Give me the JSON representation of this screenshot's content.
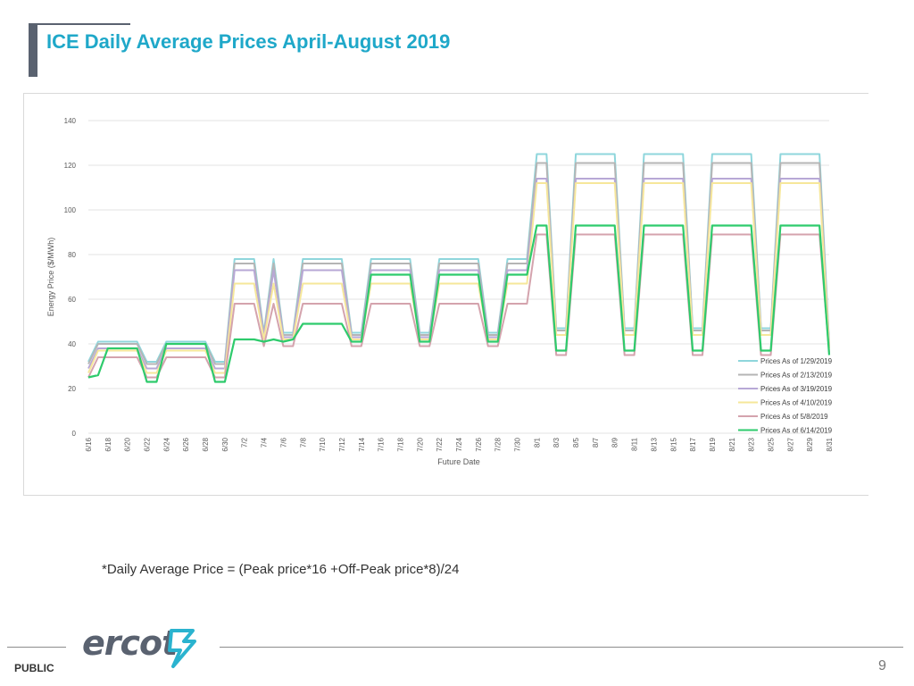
{
  "slide": {
    "title": "ICE Daily Average Prices April-August 2019",
    "footnote": "*Daily Average Price = (Peak price*16 +Off-Peak price*8)/24",
    "classification": "PUBLIC",
    "page_number": "9",
    "logo_text": "ercot",
    "logo_icon": "ercot-bolt-icon"
  },
  "chart_data": {
    "type": "line",
    "title": "",
    "xlabel": "Future Date",
    "ylabel": "Energy Price ($/MWh)",
    "ylim": [
      0,
      140
    ],
    "yticks": [
      0,
      20,
      40,
      60,
      80,
      100,
      120,
      140
    ],
    "grid": true,
    "legend_position": "bottom-right",
    "x": [
      "6/16",
      "6/17",
      "6/18",
      "6/19",
      "6/20",
      "6/21",
      "6/22",
      "6/23",
      "6/24",
      "6/25",
      "6/26",
      "6/27",
      "6/28",
      "6/29",
      "6/30",
      "7/1",
      "7/2",
      "7/3",
      "7/4",
      "7/5",
      "7/6",
      "7/7",
      "7/8",
      "7/9",
      "7/10",
      "7/11",
      "7/12",
      "7/13",
      "7/14",
      "7/15",
      "7/16",
      "7/17",
      "7/18",
      "7/19",
      "7/20",
      "7/21",
      "7/22",
      "7/23",
      "7/24",
      "7/25",
      "7/26",
      "7/27",
      "7/28",
      "7/29",
      "7/30",
      "7/31",
      "8/1",
      "8/2",
      "8/3",
      "8/4",
      "8/5",
      "8/6",
      "8/7",
      "8/8",
      "8/9",
      "8/10",
      "8/11",
      "8/12",
      "8/13",
      "8/14",
      "8/15",
      "8/16",
      "8/17",
      "8/18",
      "8/19",
      "8/20",
      "8/21",
      "8/22",
      "8/23",
      "8/24",
      "8/25",
      "8/26",
      "8/27",
      "8/28",
      "8/29",
      "8/30",
      "8/31"
    ],
    "x_tick_labels": [
      "6/16",
      "6/18",
      "6/20",
      "6/22",
      "6/24",
      "6/26",
      "6/28",
      "6/30",
      "7/2",
      "7/4",
      "7/6",
      "7/8",
      "7/10",
      "7/12",
      "7/14",
      "7/16",
      "7/18",
      "7/20",
      "7/22",
      "7/24",
      "7/26",
      "7/28",
      "7/30",
      "8/1",
      "8/3",
      "8/5",
      "8/7",
      "8/9",
      "8/11",
      "8/13",
      "8/15",
      "8/17",
      "8/19",
      "8/21",
      "8/23",
      "8/25",
      "8/27",
      "8/29",
      "8/31"
    ],
    "series": [
      {
        "name": "Prices As of 1/29/2019",
        "color": "#8fd6dc",
        "values": [
          32,
          41,
          41,
          41,
          41,
          41,
          32,
          32,
          41,
          41,
          41,
          41,
          41,
          32,
          32,
          78,
          78,
          78,
          45,
          78,
          45,
          45,
          78,
          78,
          78,
          78,
          78,
          45,
          45,
          78,
          78,
          78,
          78,
          78,
          45,
          45,
          78,
          78,
          78,
          78,
          78,
          45,
          45,
          78,
          78,
          78,
          125,
          125,
          47,
          47,
          125,
          125,
          125,
          125,
          125,
          47,
          47,
          125,
          125,
          125,
          125,
          125,
          47,
          47,
          125,
          125,
          125,
          125,
          125,
          47,
          47,
          125,
          125,
          125,
          125,
          125,
          40
        ]
      },
      {
        "name": "Prices As of 2/13/2019",
        "color": "#b5b5b5",
        "values": [
          31,
          40,
          40,
          40,
          40,
          40,
          31,
          31,
          40,
          40,
          40,
          40,
          40,
          31,
          31,
          76,
          76,
          76,
          44,
          76,
          44,
          44,
          76,
          76,
          76,
          76,
          76,
          44,
          44,
          76,
          76,
          76,
          76,
          76,
          44,
          44,
          76,
          76,
          76,
          76,
          76,
          44,
          44,
          76,
          76,
          76,
          121,
          121,
          46,
          46,
          121,
          121,
          121,
          121,
          121,
          46,
          46,
          121,
          121,
          121,
          121,
          121,
          46,
          46,
          121,
          121,
          121,
          121,
          121,
          46,
          46,
          121,
          121,
          121,
          121,
          121,
          39
        ]
      },
      {
        "name": "Prices As of 3/19/2019",
        "color": "#b7a8d6",
        "values": [
          29,
          38,
          38,
          38,
          38,
          38,
          29,
          29,
          38,
          38,
          38,
          38,
          38,
          29,
          29,
          73,
          73,
          73,
          43,
          73,
          43,
          43,
          73,
          73,
          73,
          73,
          73,
          43,
          43,
          73,
          73,
          73,
          73,
          73,
          43,
          43,
          73,
          73,
          73,
          73,
          73,
          43,
          43,
          73,
          73,
          73,
          114,
          114,
          44,
          44,
          114,
          114,
          114,
          114,
          114,
          44,
          44,
          114,
          114,
          114,
          114,
          114,
          44,
          44,
          114,
          114,
          114,
          114,
          114,
          44,
          44,
          114,
          114,
          114,
          114,
          114,
          38
        ]
      },
      {
        "name": "Prices As of 4/10/2019",
        "color": "#f6e79a",
        "values": [
          27,
          37,
          37,
          37,
          37,
          37,
          27,
          27,
          37,
          37,
          37,
          37,
          37,
          27,
          27,
          67,
          67,
          67,
          42,
          67,
          42,
          42,
          67,
          67,
          67,
          67,
          67,
          42,
          42,
          67,
          67,
          67,
          67,
          67,
          42,
          42,
          67,
          67,
          67,
          67,
          67,
          42,
          42,
          67,
          67,
          67,
          112,
          112,
          44,
          44,
          112,
          112,
          112,
          112,
          112,
          44,
          44,
          112,
          112,
          112,
          112,
          112,
          44,
          44,
          112,
          112,
          112,
          112,
          112,
          44,
          44,
          112,
          112,
          112,
          112,
          112,
          38
        ]
      },
      {
        "name": "Prices As of 5/8/2019",
        "color": "#d4a3ad",
        "values": [
          25,
          34,
          34,
          34,
          34,
          34,
          25,
          25,
          34,
          34,
          34,
          34,
          34,
          25,
          25,
          58,
          58,
          58,
          39,
          58,
          39,
          39,
          58,
          58,
          58,
          58,
          58,
          39,
          39,
          58,
          58,
          58,
          58,
          58,
          39,
          39,
          58,
          58,
          58,
          58,
          58,
          39,
          39,
          58,
          58,
          58,
          89,
          89,
          35,
          35,
          89,
          89,
          89,
          89,
          89,
          35,
          35,
          89,
          89,
          89,
          89,
          89,
          35,
          35,
          89,
          89,
          89,
          89,
          89,
          35,
          35,
          89,
          89,
          89,
          89,
          89,
          36
        ]
      },
      {
        "name": "Prices As of 6/14/2019",
        "color": "#2ecb6c",
        "values": [
          25,
          26,
          38,
          38,
          38,
          38,
          23,
          23,
          40,
          40,
          40,
          40,
          40,
          23,
          23,
          42,
          42,
          42,
          41,
          42,
          41,
          42,
          49,
          49,
          49,
          49,
          49,
          41,
          41,
          71,
          71,
          71,
          71,
          71,
          41,
          41,
          71,
          71,
          71,
          71,
          71,
          41,
          41,
          71,
          71,
          71,
          93,
          93,
          37,
          37,
          93,
          93,
          93,
          93,
          93,
          37,
          37,
          93,
          93,
          93,
          93,
          93,
          37,
          37,
          93,
          93,
          93,
          93,
          93,
          37,
          37,
          93,
          93,
          93,
          93,
          93,
          35
        ]
      }
    ]
  }
}
